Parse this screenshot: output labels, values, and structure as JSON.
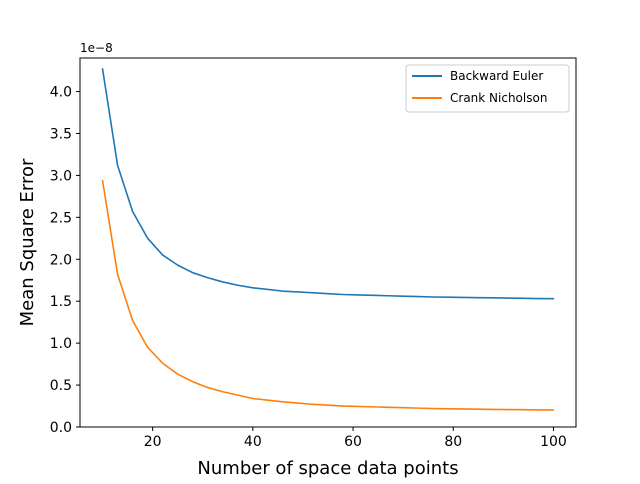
{
  "chart_data": {
    "type": "line",
    "title": "",
    "xlabel": "Number of space data points",
    "ylabel": "Mean Square Error",
    "y_offset_label": "1e−8",
    "xlim": [
      5.5,
      104.5
    ],
    "ylim": [
      0,
      4.4
    ],
    "xticks": [
      20,
      40,
      60,
      80,
      100
    ],
    "xtick_labels": [
      "20",
      "40",
      "60",
      "80",
      "100"
    ],
    "yticks": [
      0,
      0.5,
      1.0,
      1.5,
      2.0,
      2.5,
      3.0,
      3.5,
      4.0
    ],
    "ytick_labels": [
      "0.0",
      "0.5",
      "1.0",
      "1.5",
      "2.0",
      "2.5",
      "3.0",
      "3.5",
      "4.0"
    ],
    "grid": false,
    "legend_position": "top-right",
    "x": [
      10,
      13,
      16,
      19,
      22,
      25,
      28,
      31,
      34,
      37,
      40,
      43,
      46,
      49,
      52,
      55,
      58,
      61,
      64,
      67,
      70,
      73,
      76,
      79,
      82,
      85,
      88,
      91,
      94,
      97,
      100
    ],
    "series": [
      {
        "name": "Backward Euler",
        "color": "#1f77b4",
        "values": [
          4.27,
          3.12,
          2.57,
          2.25,
          2.05,
          1.93,
          1.84,
          1.78,
          1.73,
          1.69,
          1.66,
          1.64,
          1.62,
          1.61,
          1.6,
          1.59,
          1.58,
          1.575,
          1.57,
          1.565,
          1.56,
          1.555,
          1.55,
          1.548,
          1.545,
          1.542,
          1.54,
          1.537,
          1.535,
          1.532,
          1.53
        ]
      },
      {
        "name": "Crank Nicholson",
        "color": "#ff7f0e",
        "values": [
          2.94,
          1.82,
          1.27,
          0.95,
          0.76,
          0.63,
          0.54,
          0.47,
          0.42,
          0.38,
          0.34,
          0.32,
          0.3,
          0.285,
          0.27,
          0.26,
          0.25,
          0.245,
          0.24,
          0.235,
          0.23,
          0.225,
          0.22,
          0.217,
          0.215,
          0.212,
          0.21,
          0.208,
          0.206,
          0.204,
          0.203
        ]
      }
    ]
  }
}
